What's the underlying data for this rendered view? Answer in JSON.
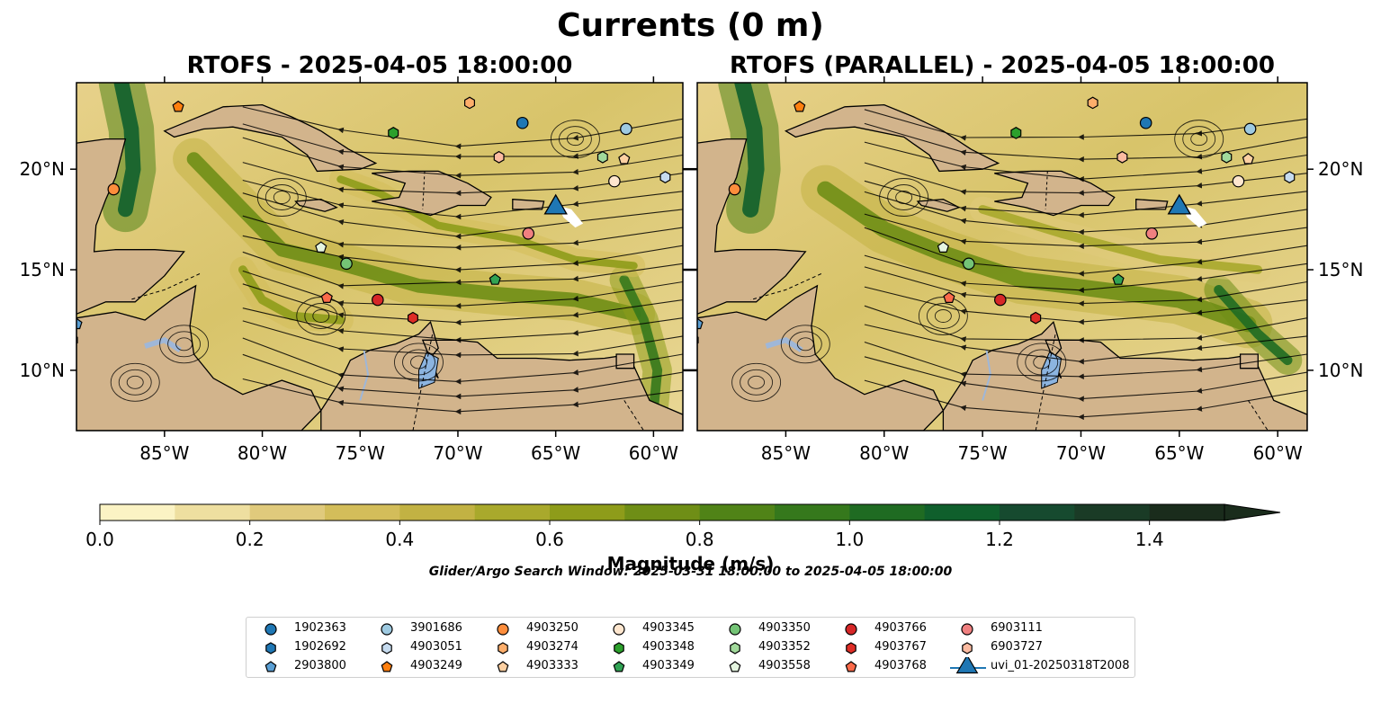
{
  "title": "Currents (0 m)",
  "panels": [
    {
      "title": "RTOFS - 2025-04-05 18:00:00"
    },
    {
      "title": "RTOFS (PARALLEL) - 2025-04-05 18:00:00"
    }
  ],
  "search_window": "Glider/Argo Search Window: 2025-03-31 18:00:00 to 2025-04-05 18:00:00",
  "chart_data": {
    "type": "heatmap",
    "extent": {
      "lon": [
        -89.5,
        -58.5
      ],
      "lat": [
        7,
        24.3
      ]
    },
    "x_ticks": [
      {
        "value": -85,
        "label": "85°W"
      },
      {
        "value": -80,
        "label": "80°W"
      },
      {
        "value": -75,
        "label": "75°W"
      },
      {
        "value": -70,
        "label": "70°W"
      },
      {
        "value": -65,
        "label": "65°W"
      },
      {
        "value": -60,
        "label": "60°W"
      }
    ],
    "y_ticks": [
      {
        "value": 20,
        "label": "20°N"
      },
      {
        "value": 15,
        "label": "15°N"
      },
      {
        "value": 10,
        "label": "10°N"
      }
    ],
    "colorbar": {
      "label": "Magnitude (m/s)",
      "range": [
        0,
        1.5
      ],
      "extend": "max",
      "ticks": [
        {
          "value": 0.0,
          "label": "0.0"
        },
        {
          "value": 0.2,
          "label": "0.2"
        },
        {
          "value": 0.4,
          "label": "0.4"
        },
        {
          "value": 0.6,
          "label": "0.6"
        },
        {
          "value": 0.8,
          "label": "0.8"
        },
        {
          "value": 1.0,
          "label": "1.0"
        },
        {
          "value": 1.2,
          "label": "1.2"
        },
        {
          "value": 1.4,
          "label": "1.4"
        }
      ],
      "colors": [
        "#fbf3c4",
        "#eedfa0",
        "#e0ca7c",
        "#d3bd5a",
        "#c2b243",
        "#a9a92c",
        "#8e9c1a",
        "#6f8e16",
        "#508317",
        "#35781c",
        "#1f6b22",
        "#0f5f2c",
        "#164a2f",
        "#1a3b26",
        "#1a2c1c"
      ]
    },
    "land_color": "#d2b48c",
    "lake_color": "#8cb4e0",
    "legend_position": "bottom",
    "floats": [
      {
        "id": "1902363",
        "marker": "circle",
        "color": "#1f77b4",
        "lon": -66.7,
        "lat": 22.3
      },
      {
        "id": "1902692",
        "marker": "hexagon",
        "color": "#1f77b4",
        "lon": -89.7,
        "lat": 11.5
      },
      {
        "id": "2903800",
        "marker": "pentagon",
        "color": "#5a9fd4",
        "lon": -89.5,
        "lat": 12.3
      },
      {
        "id": "3901686",
        "marker": "circle",
        "color": "#9ecae1",
        "lon": -61.4,
        "lat": 22.0
      },
      {
        "id": "4903051",
        "marker": "hexagon",
        "color": "#c6dbef",
        "lon": -59.4,
        "lat": 19.6
      },
      {
        "id": "4903249",
        "marker": "pentagon",
        "color": "#ff7f0e",
        "lon": -84.3,
        "lat": 23.1
      },
      {
        "id": "4903250",
        "marker": "circle",
        "color": "#fd8d3c",
        "lon": -87.6,
        "lat": 19.0
      },
      {
        "id": "4903274",
        "marker": "hexagon",
        "color": "#fdae6b",
        "lon": -69.4,
        "lat": 23.3
      },
      {
        "id": "4903333",
        "marker": "pentagon",
        "color": "#fdd0a2",
        "lon": -61.5,
        "lat": 20.5
      },
      {
        "id": "4903345",
        "marker": "circle",
        "color": "#fee6ce",
        "lon": -62.0,
        "lat": 19.4
      },
      {
        "id": "4903348",
        "marker": "hexagon",
        "color": "#2ca02c",
        "lon": -73.3,
        "lat": 21.8
      },
      {
        "id": "4903349",
        "marker": "pentagon",
        "color": "#31a354",
        "lon": -68.1,
        "lat": 14.5
      },
      {
        "id": "4903350",
        "marker": "circle",
        "color": "#74c476",
        "lon": -75.7,
        "lat": 15.3
      },
      {
        "id": "4903352",
        "marker": "hexagon",
        "color": "#a1d99b",
        "lon": -62.6,
        "lat": 20.6
      },
      {
        "id": "4903558",
        "marker": "pentagon",
        "color": "#e5f5e0",
        "lon": -77.0,
        "lat": 16.1
      },
      {
        "id": "4903766",
        "marker": "circle",
        "color": "#d62728",
        "lon": -74.1,
        "lat": 13.5
      },
      {
        "id": "4903767",
        "marker": "hexagon",
        "color": "#de2d26",
        "lon": -72.3,
        "lat": 12.6
      },
      {
        "id": "4903768",
        "marker": "pentagon",
        "color": "#fb6a4a",
        "lon": -76.7,
        "lat": 13.6
      },
      {
        "id": "6903111",
        "marker": "circle",
        "color": "#f08080",
        "lon": -66.4,
        "lat": 16.8
      },
      {
        "id": "6903727",
        "marker": "hexagon",
        "color": "#fcbba1",
        "lon": -67.9,
        "lat": 20.6
      }
    ],
    "glider": {
      "id": "uvi_01-20250318T2008",
      "marker": "triangle",
      "color": "#1f77b4",
      "lon": -65.0,
      "lat": 18.0
    }
  }
}
